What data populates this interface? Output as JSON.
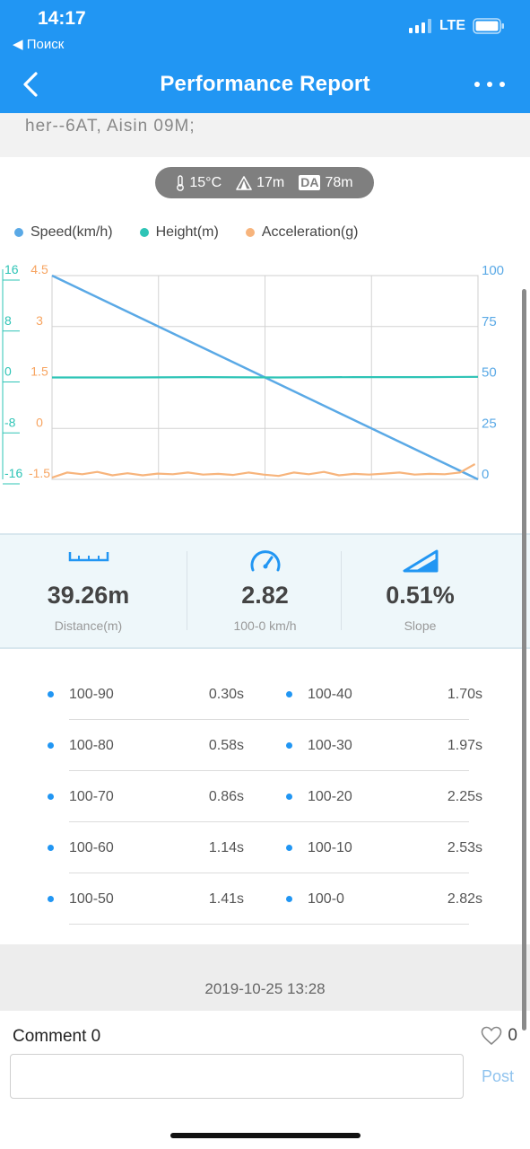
{
  "status_bar": {
    "time": "14:17",
    "back_app": "◀ Поиск",
    "network": "LTE"
  },
  "nav": {
    "title": "Performance Report"
  },
  "vehicle": {
    "model_text": "her--6AT, Aisin 09M;"
  },
  "conditions": {
    "temperature": "15°C",
    "altitude": "17m",
    "da_label": "DA",
    "density_altitude": "78m"
  },
  "legend": [
    {
      "label": "Speed(km/h)",
      "color": "#5aa9e6"
    },
    {
      "label": "Height(m)",
      "color": "#2ec4b6"
    },
    {
      "label": "Acceleration(g)",
      "color": "#f7b47c"
    }
  ],
  "chart_data": {
    "type": "line",
    "left_axis_height_ticks": [
      "16",
      "8",
      "0",
      "-8",
      "-16"
    ],
    "left_axis_accel_ticks": [
      "4.5",
      "3",
      "1.5",
      "0",
      "-1.5"
    ],
    "right_axis_speed_ticks": [
      "100",
      "75",
      "50",
      "25",
      "0"
    ],
    "x_range": [
      0,
      2.82
    ],
    "speed_ylim": [
      0,
      100
    ],
    "height_ylim": [
      -16,
      16
    ],
    "accel_ylim": [
      -1.5,
      4.5
    ],
    "grid": true,
    "series": [
      {
        "name": "Speed(km/h)",
        "axis": "speed",
        "color": "#5aa9e6",
        "x": [
          0,
          2.82
        ],
        "y": [
          100,
          0
        ]
      },
      {
        "name": "Height(m)",
        "axis": "height",
        "color": "#2ec4b6",
        "x": [
          0,
          0.5,
          1.0,
          1.5,
          2.0,
          2.5,
          2.82
        ],
        "y": [
          0,
          0,
          0.05,
          0,
          0.05,
          0.05,
          0.1
        ]
      },
      {
        "name": "Acceleration(g)",
        "axis": "accel",
        "color": "#f7b47c",
        "x": [
          0,
          0.1,
          0.2,
          0.3,
          0.4,
          0.5,
          0.6,
          0.7,
          0.8,
          0.9,
          1.0,
          1.1,
          1.2,
          1.3,
          1.4,
          1.5,
          1.6,
          1.7,
          1.8,
          1.9,
          2.0,
          2.1,
          2.2,
          2.3,
          2.4,
          2.5,
          2.6,
          2.7,
          2.8
        ],
        "y": [
          -1.45,
          -1.3,
          -1.35,
          -1.28,
          -1.38,
          -1.32,
          -1.38,
          -1.33,
          -1.35,
          -1.3,
          -1.36,
          -1.34,
          -1.37,
          -1.3,
          -1.36,
          -1.4,
          -1.3,
          -1.35,
          -1.28,
          -1.38,
          -1.34,
          -1.36,
          -1.33,
          -1.3,
          -1.36,
          -1.34,
          -1.35,
          -1.3,
          -1.05
        ]
      }
    ]
  },
  "metrics": [
    {
      "value": "39.26m",
      "label": "Distance(m)",
      "icon": "ruler-icon"
    },
    {
      "value": "2.82",
      "label": "100-0 km/h",
      "icon": "speedometer-icon"
    },
    {
      "value": "0.51%",
      "label": "Slope",
      "icon": "slope-icon"
    }
  ],
  "splits_left": [
    {
      "label": "100-90",
      "time": "0.30s"
    },
    {
      "label": "100-80",
      "time": "0.58s"
    },
    {
      "label": "100-70",
      "time": "0.86s"
    },
    {
      "label": "100-60",
      "time": "1.14s"
    },
    {
      "label": "100-50",
      "time": "1.41s"
    }
  ],
  "splits_right": [
    {
      "label": "100-40",
      "time": "1.70s"
    },
    {
      "label": "100-30",
      "time": "1.97s"
    },
    {
      "label": "100-20",
      "time": "2.25s"
    },
    {
      "label": "100-10",
      "time": "2.53s"
    },
    {
      "label": "100-0",
      "time": "2.82s"
    }
  ],
  "timestamp": "2019-10-25 13:28",
  "comments": {
    "label": "Comment 0",
    "likes": "0",
    "post_label": "Post",
    "input_value": ""
  }
}
